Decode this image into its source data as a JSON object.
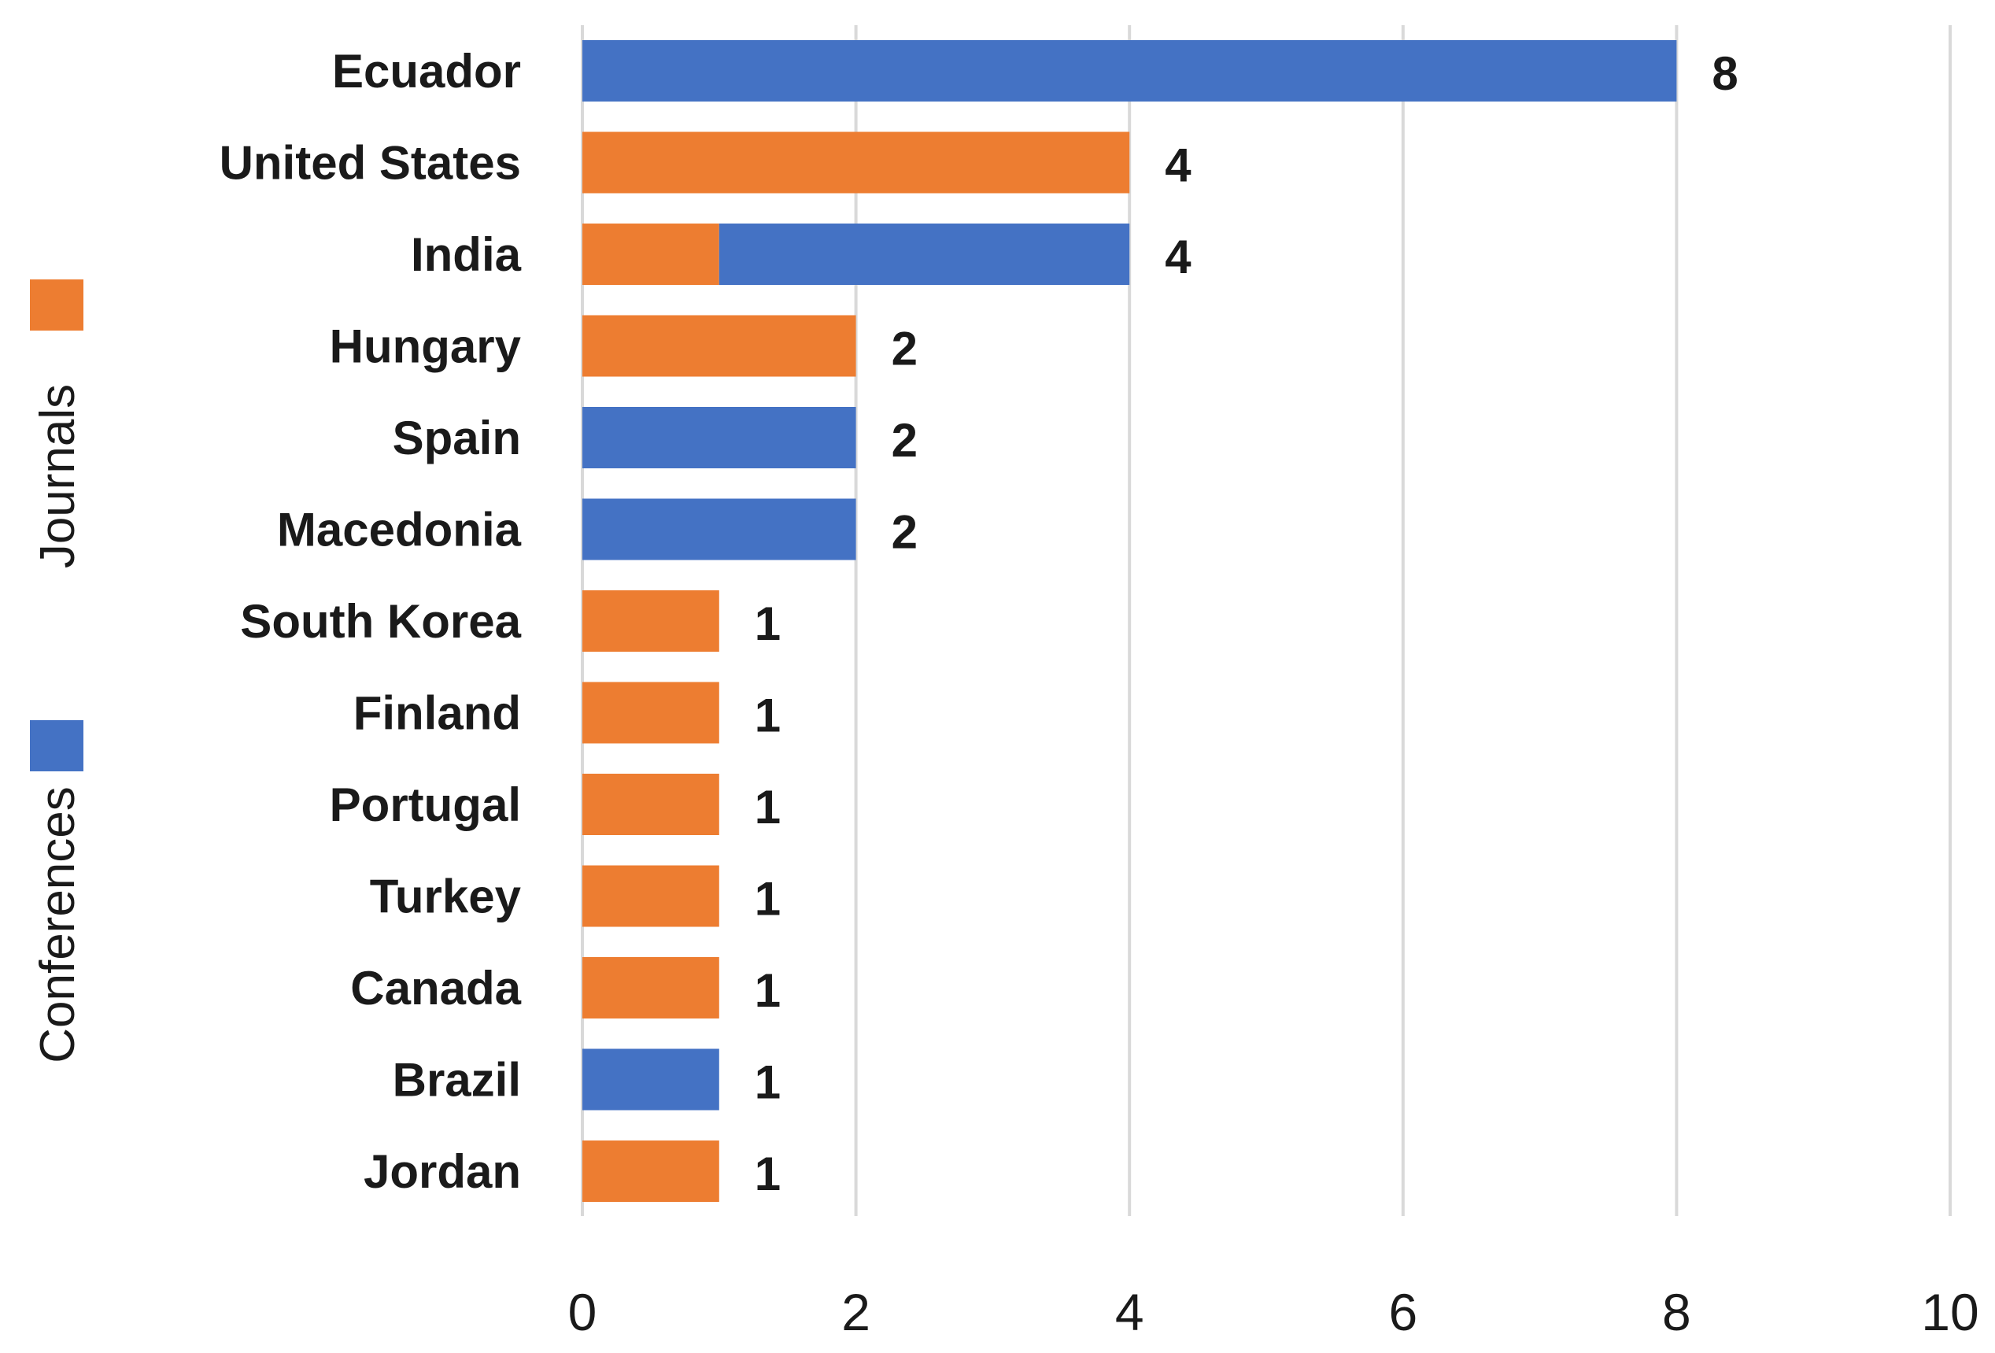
{
  "chart_data": {
    "type": "bar",
    "orientation": "horizontal",
    "stacked": true,
    "categories": [
      "Ecuador",
      "United States",
      "India",
      "Hungary",
      "Spain",
      "Macedonia",
      "South Korea",
      "Finland",
      "Portugal",
      "Turkey",
      "Canada",
      "Brazil",
      "Jordan"
    ],
    "series": [
      {
        "name": "Journals",
        "color": "#ED7D31",
        "values": [
          0,
          4,
          1,
          2,
          0,
          0,
          1,
          1,
          1,
          1,
          1,
          0,
          1
        ]
      },
      {
        "name": "Conferences",
        "color": "#4472C4",
        "values": [
          8,
          0,
          3,
          0,
          2,
          2,
          0,
          0,
          0,
          0,
          0,
          1,
          0
        ]
      }
    ],
    "totals": [
      8,
      4,
      4,
      2,
      2,
      2,
      1,
      1,
      1,
      1,
      1,
      1,
      1
    ],
    "xlim": [
      0,
      10
    ],
    "xticks": [
      0,
      2,
      4,
      6,
      8,
      10
    ],
    "grid": true,
    "legend": {
      "placement": "left",
      "orientation": "vertical-rotated",
      "entries": [
        "Journals",
        "Conferences"
      ]
    },
    "title": "",
    "xlabel": "",
    "ylabel": ""
  }
}
